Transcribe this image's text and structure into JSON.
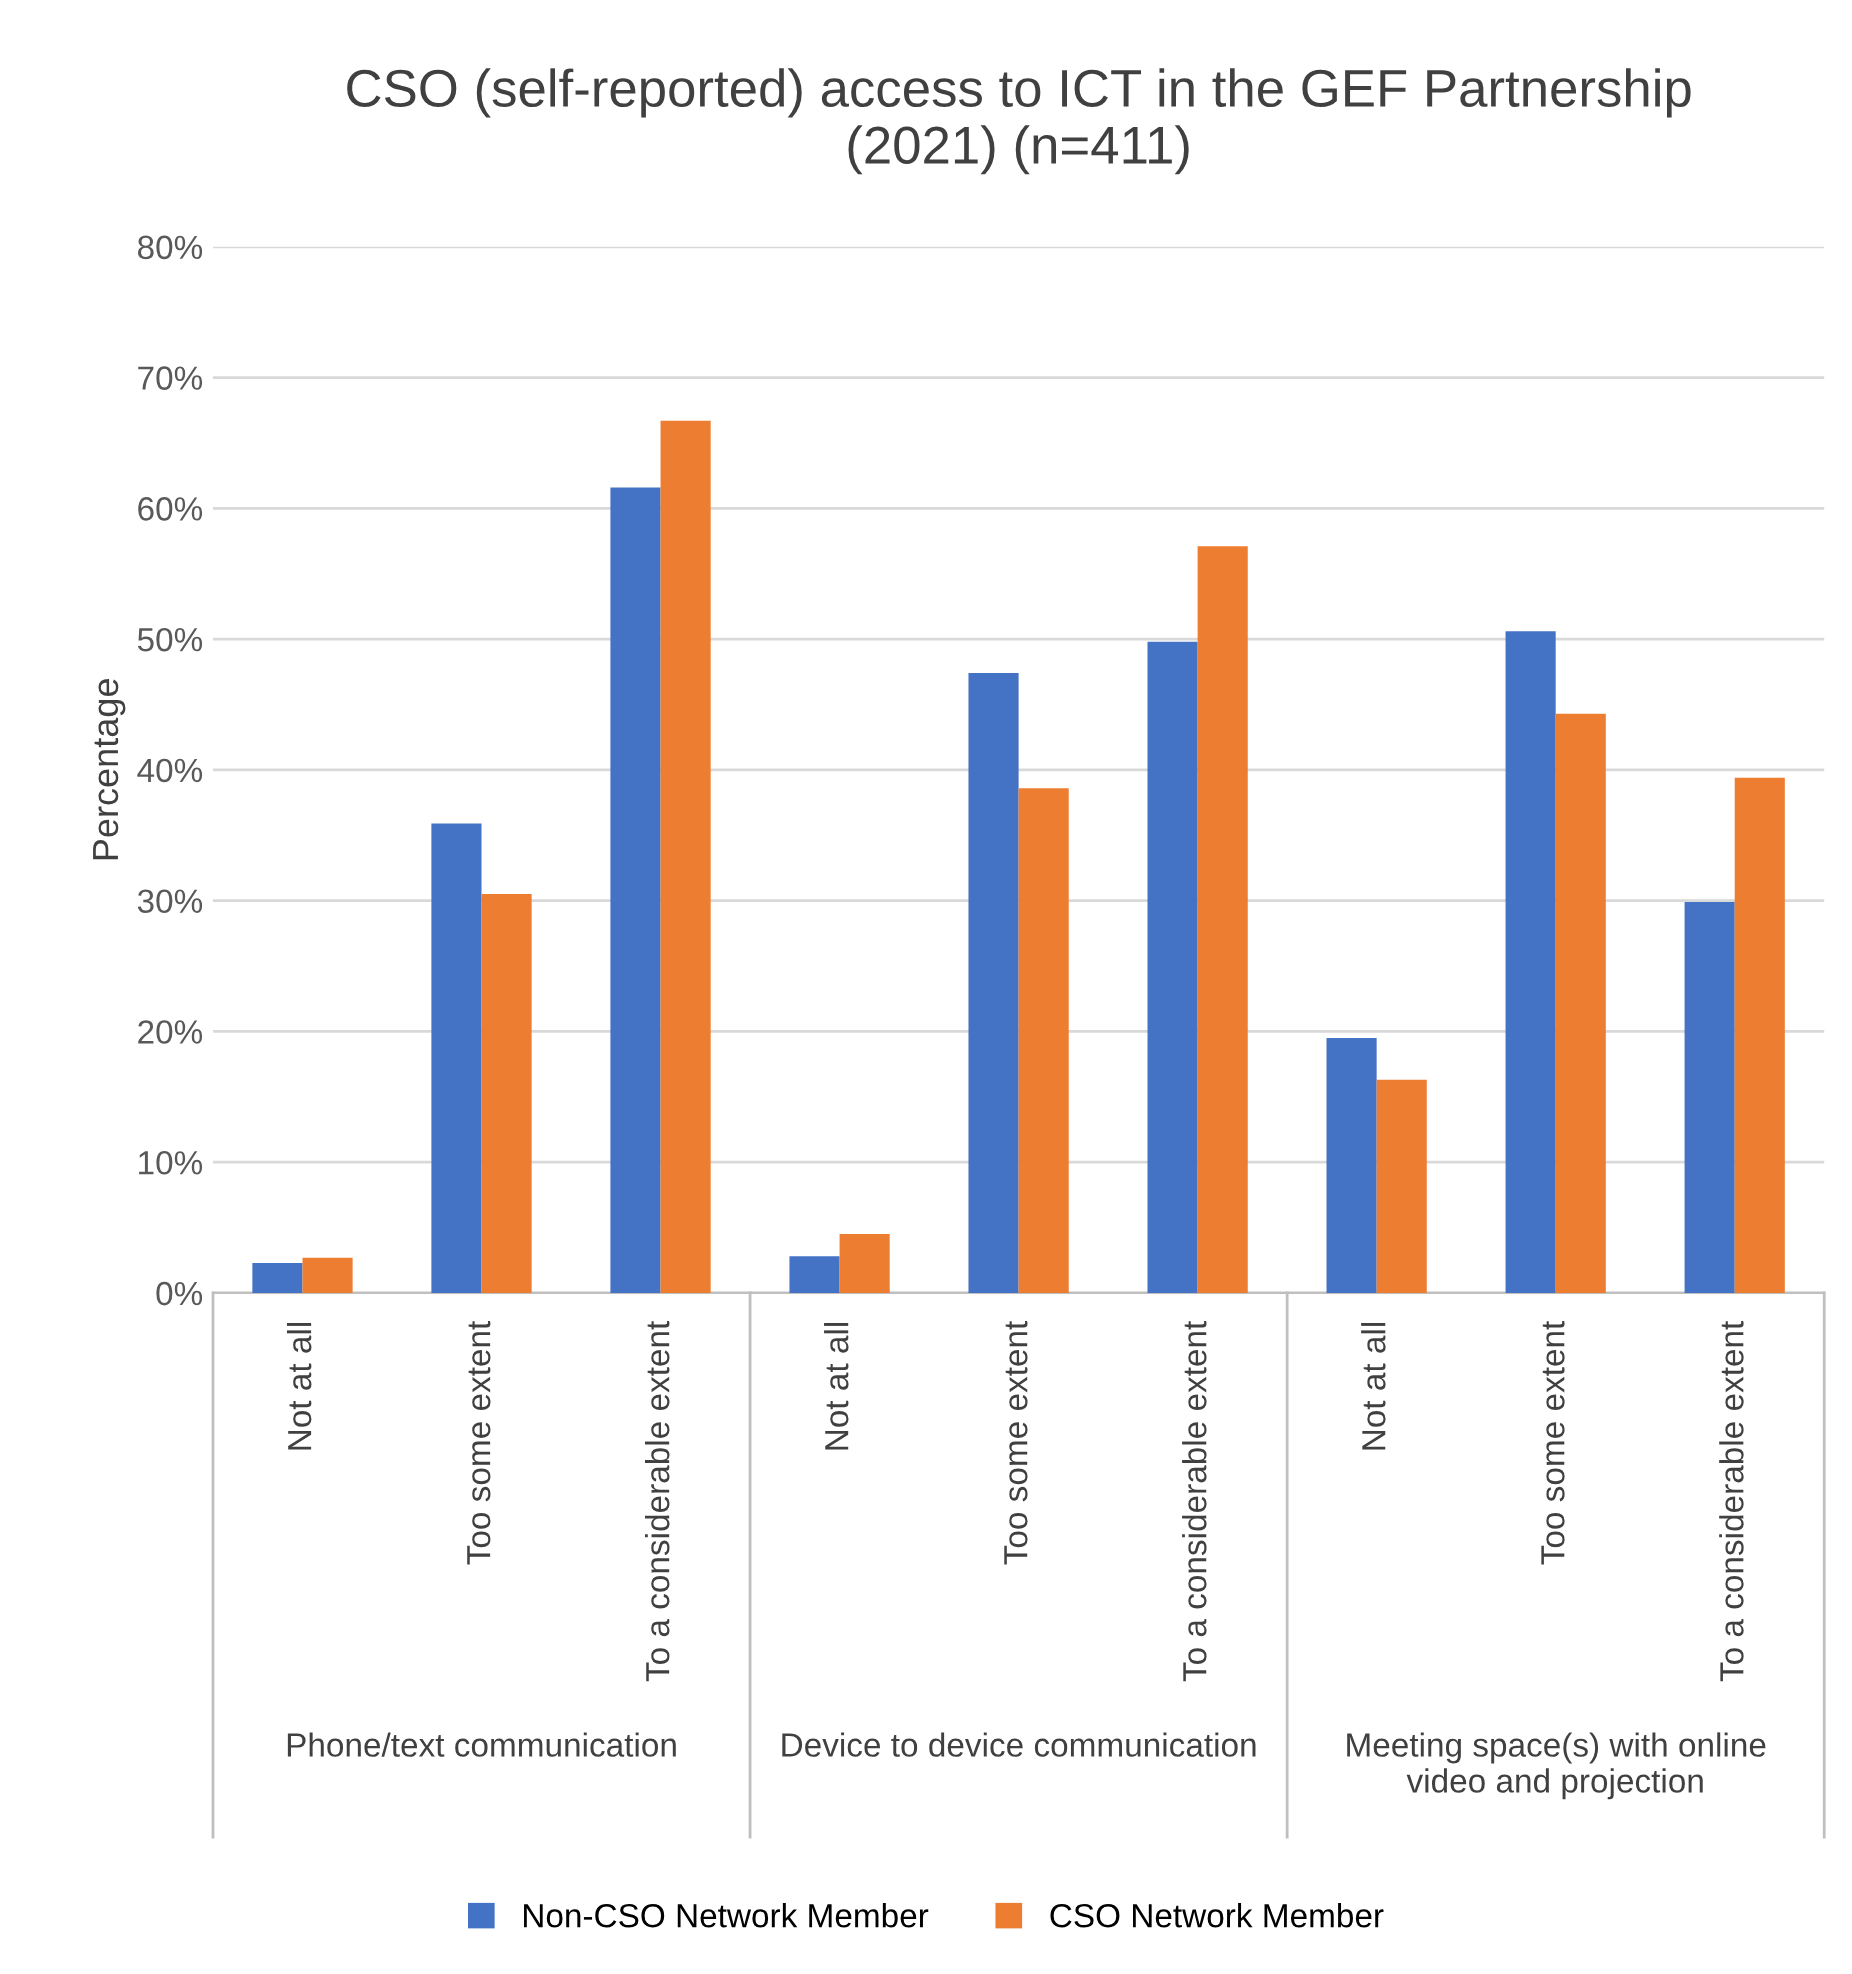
{
  "chart_data": {
    "type": "bar",
    "title": "CSO (self-reported) access to ICT in the GEF Partnership\n(2021) (n=411)",
    "ylabel": "Percentage",
    "categories": [
      "Not at all",
      "Too some extent",
      "To a considerable extent",
      "Not at all",
      "Too some extent",
      "To a considerable extent",
      "Not at all",
      "Too some extent",
      "To a considerable extent"
    ],
    "series": [
      {
        "name": "Non-CSO Network Member",
        "color": "#4472c4",
        "values": [
          2.3,
          35.9,
          61.6,
          2.8,
          47.4,
          49.8,
          19.5,
          50.6,
          29.9
        ]
      },
      {
        "name": "CSO Network Member",
        "color": "#ed7d31",
        "values": [
          2.7,
          30.5,
          66.7,
          4.5,
          38.6,
          57.1,
          16.3,
          44.3,
          39.4
        ]
      }
    ],
    "annotations": [
      "Phone/text communication",
      "Device to device communication",
      "Meeting space(s) with online video and projection"
    ],
    "ylim": [
      0,
      80
    ],
    "yticks": [
      {
        "value": 0,
        "label": "0%"
      },
      {
        "value": 10,
        "label": "10%"
      },
      {
        "value": 20,
        "label": "20%"
      },
      {
        "value": 30,
        "label": "30%"
      },
      {
        "value": 40,
        "label": "40%"
      },
      {
        "value": 50,
        "label": "50%"
      },
      {
        "value": 60,
        "label": "60%"
      },
      {
        "value": 70,
        "label": "70%"
      },
      {
        "value": 80,
        "label": "80%"
      }
    ],
    "grid": "y",
    "legend": "bottom"
  }
}
